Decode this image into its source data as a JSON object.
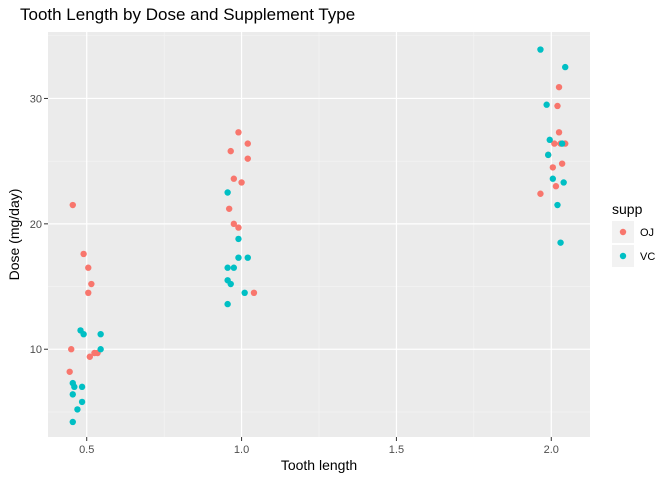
{
  "chart_data": {
    "type": "scatter",
    "title": "Tooth Length by Dose and Supplement Type",
    "xlabel": "Tooth length",
    "ylabel": "Dose (mg/day)",
    "xlim": [
      0.375,
      2.125
    ],
    "ylim": [
      3.0,
      35.3
    ],
    "x_ticks": [
      0.5,
      1.0,
      1.5,
      2.0
    ],
    "x_tick_labels": [
      "0.5",
      "1.0",
      "1.5",
      "2.0"
    ],
    "y_ticks": [
      10,
      20,
      30
    ],
    "y_tick_labels": [
      "10",
      "20",
      "30"
    ],
    "grid": true,
    "legend": {
      "title": "supp",
      "position": "right"
    },
    "series": [
      {
        "name": "OJ",
        "color": "#F8766D",
        "points": [
          [
            0.455,
            21.5
          ],
          [
            0.49,
            17.6
          ],
          [
            0.505,
            16.5
          ],
          [
            0.515,
            15.2
          ],
          [
            0.505,
            14.5
          ],
          [
            0.45,
            10.0
          ],
          [
            0.525,
            9.7
          ],
          [
            0.51,
            9.4
          ],
          [
            0.535,
            9.7
          ],
          [
            0.445,
            8.2
          ],
          [
            0.99,
            27.3
          ],
          [
            1.02,
            26.4
          ],
          [
            0.965,
            25.8
          ],
          [
            1.02,
            25.2
          ],
          [
            0.975,
            23.6
          ],
          [
            1.0,
            23.3
          ],
          [
            0.96,
            21.2
          ],
          [
            0.975,
            20.0
          ],
          [
            0.99,
            19.7
          ],
          [
            1.04,
            14.5
          ],
          [
            2.025,
            30.9
          ],
          [
            2.02,
            29.4
          ],
          [
            2.025,
            27.3
          ],
          [
            2.01,
            26.4
          ],
          [
            2.03,
            26.4
          ],
          [
            2.045,
            26.4
          ],
          [
            1.99,
            25.5
          ],
          [
            2.035,
            24.8
          ],
          [
            2.005,
            24.5
          ],
          [
            2.015,
            23.0
          ],
          [
            1.965,
            22.4
          ]
        ]
      },
      {
        "name": "VC",
        "color": "#00BFC4",
        "points": [
          [
            0.48,
            11.5
          ],
          [
            0.49,
            11.2
          ],
          [
            0.545,
            11.2
          ],
          [
            0.545,
            10.0
          ],
          [
            0.455,
            7.3
          ],
          [
            0.46,
            7.0
          ],
          [
            0.485,
            7.0
          ],
          [
            0.455,
            6.4
          ],
          [
            0.485,
            5.8
          ],
          [
            0.47,
            5.2
          ],
          [
            0.455,
            4.2
          ],
          [
            0.955,
            22.5
          ],
          [
            0.99,
            18.8
          ],
          [
            0.99,
            17.3
          ],
          [
            1.02,
            17.3
          ],
          [
            0.955,
            16.5
          ],
          [
            0.975,
            16.5
          ],
          [
            0.955,
            15.5
          ],
          [
            0.965,
            15.2
          ],
          [
            1.01,
            14.5
          ],
          [
            0.955,
            13.6
          ],
          [
            1.965,
            33.9
          ],
          [
            2.045,
            32.5
          ],
          [
            1.985,
            29.5
          ],
          [
            1.995,
            26.7
          ],
          [
            2.035,
            26.4
          ],
          [
            1.99,
            25.5
          ],
          [
            2.005,
            23.6
          ],
          [
            2.04,
            23.3
          ],
          [
            2.02,
            21.5
          ],
          [
            2.03,
            18.5
          ]
        ]
      }
    ]
  }
}
